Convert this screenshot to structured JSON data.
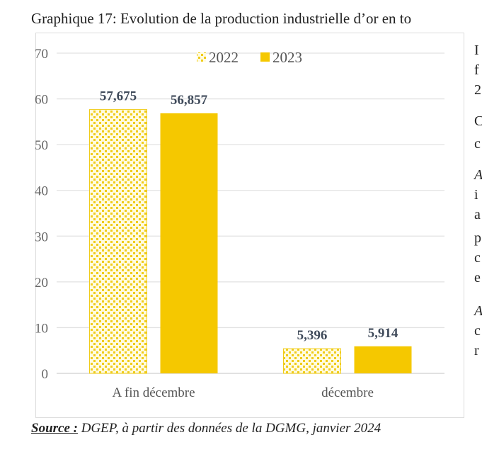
{
  "title": "Graphique 17: Evolution de la production industrielle d’or en to",
  "chart_data": {
    "type": "bar",
    "title": "",
    "xlabel": "",
    "ylabel": "",
    "categories": [
      "A fin décembre",
      "décembre"
    ],
    "series": [
      {
        "name": "2022",
        "values": [
          57.675,
          5.396
        ],
        "labels": [
          "57,675",
          "5,396"
        ],
        "color": "#f5c800",
        "pattern": "dotted"
      },
      {
        "name": "2023",
        "values": [
          56.857,
          5.914
        ],
        "labels": [
          "56,857",
          "5,914"
        ],
        "color": "#f5c800",
        "pattern": "solid"
      }
    ],
    "ylim": [
      0,
      70
    ],
    "yticks": [
      0,
      10,
      20,
      30,
      40,
      50,
      60,
      70
    ],
    "grid": true,
    "legend": "top-center"
  },
  "source": {
    "label": "Source :",
    "text": " DGEP, à partir des données de la DGMG, janvier 2024"
  },
  "side_text_fragments": [
    "I",
    "f",
    "2",
    "C",
    "c",
    "A",
    "i",
    "a",
    "p",
    "c",
    "e",
    "A",
    "c",
    "r"
  ]
}
